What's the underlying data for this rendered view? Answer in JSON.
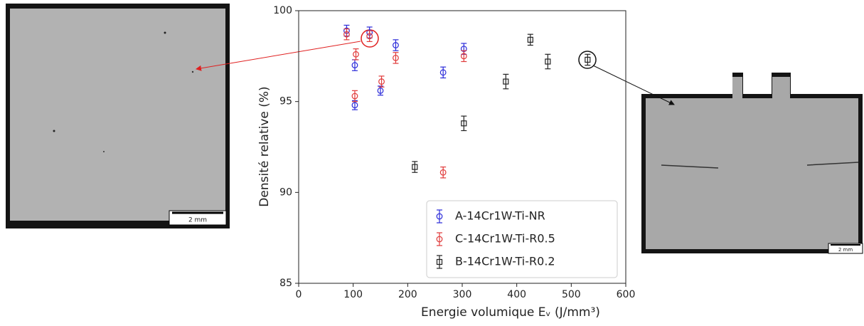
{
  "chart_data": {
    "type": "scatter",
    "ylabel": "Densité relative (%)",
    "xlabel": "Energie volumique Eᵥ (J/mm³)",
    "xlim": [
      0,
      600
    ],
    "xticks": [
      0,
      100,
      200,
      300,
      400,
      500,
      600
    ],
    "ylim": [
      85,
      100
    ],
    "yticks": [
      85,
      90,
      95,
      100
    ],
    "legend": "lower right",
    "series": [
      {
        "name": "A-14Cr1W-Ti-NR",
        "color": "#2b2bd9",
        "marker": "circle",
        "x": [
          88,
          130,
          103,
          103,
          150,
          178,
          265,
          303
        ],
        "values": [
          98.9,
          98.8,
          97.0,
          94.8,
          95.6,
          98.1,
          96.6,
          97.9
        ],
        "errors": [
          0.3,
          0.3,
          0.3,
          0.25,
          0.25,
          0.3,
          0.3,
          0.3
        ]
      },
      {
        "name": "C-14Cr1W-Ti-R0.5",
        "color": "#e03a3a",
        "marker": "circle",
        "x": [
          88,
          130,
          105,
          103,
          152,
          178,
          265,
          303
        ],
        "values": [
          98.7,
          98.6,
          97.6,
          95.3,
          96.1,
          97.4,
          91.1,
          97.5
        ],
        "errors": [
          0.3,
          0.3,
          0.3,
          0.3,
          0.3,
          0.3,
          0.3,
          0.3
        ]
      },
      {
        "name": "B-14Cr1W-Ti-R0.2",
        "color": "#222222",
        "marker": "square",
        "x": [
          213,
          303,
          380,
          425,
          457,
          530
        ],
        "values": [
          91.4,
          93.8,
          96.1,
          98.4,
          97.2,
          97.3
        ],
        "errors": [
          0.3,
          0.4,
          0.4,
          0.3,
          0.4,
          0.3
        ]
      }
    ]
  },
  "images": [
    {
      "scale_label": "2 mm"
    },
    {
      "scale_label": "2 mm"
    }
  ]
}
